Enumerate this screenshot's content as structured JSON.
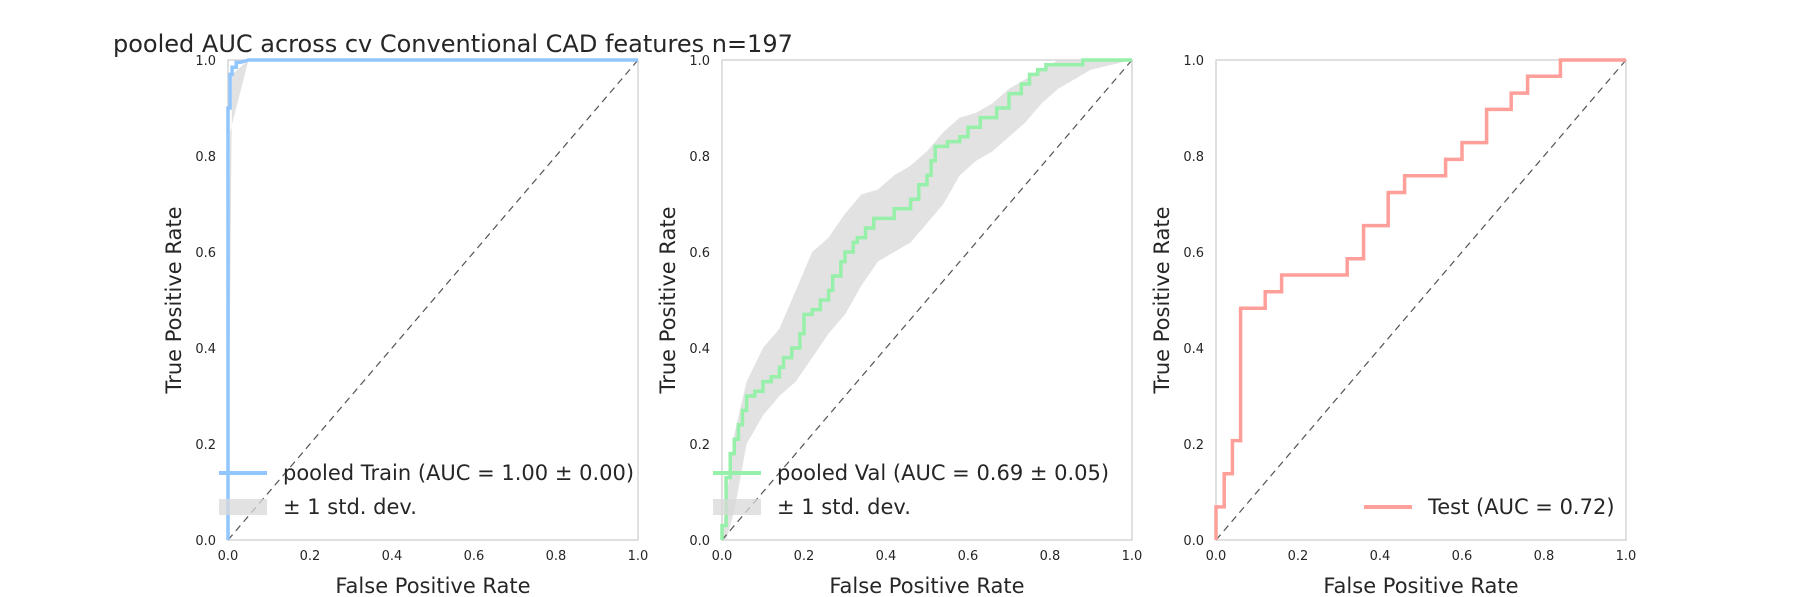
{
  "figure": {
    "title": "pooled AUC across cv Conventional CAD features n=197"
  },
  "chart_data": [
    {
      "type": "line",
      "xlabel": "False Positive Rate",
      "ylabel": "True Positive Rate",
      "xlim": [
        0,
        1
      ],
      "ylim": [
        0,
        1
      ],
      "xticks": [
        "0.0",
        "0.2",
        "0.4",
        "0.6",
        "0.8",
        "1.0"
      ],
      "yticks": [
        "0.0",
        "0.2",
        "0.4",
        "0.6",
        "0.8",
        "1.0"
      ],
      "grid": false,
      "legend_position": "lower-right",
      "diagonal": true,
      "series": [
        {
          "name": "pooled Train (AUC = 1.00 ± 0.00)",
          "color": "#92c6ff",
          "x": [
            0.0,
            0.0,
            0.005,
            0.005,
            0.01,
            0.01,
            0.02,
            0.02,
            0.03,
            0.05,
            1.0
          ],
          "y": [
            0.0,
            0.9,
            0.9,
            0.97,
            0.97,
            0.985,
            0.985,
            0.995,
            0.995,
            1.0,
            1.0
          ]
        }
      ],
      "band": {
        "name": "± 1 std. dev.",
        "color": "#d8d8d8",
        "upper": {
          "x": [
            0.0,
            0.01,
            0.05,
            1.0
          ],
          "y": [
            0.0,
            0.97,
            1.0,
            1.0
          ]
        },
        "lower": {
          "x": [
            0.0,
            0.005,
            0.05,
            1.0
          ],
          "y": [
            0.0,
            0.85,
            1.0,
            1.0
          ]
        }
      }
    },
    {
      "type": "line",
      "xlabel": "False Positive Rate",
      "ylabel": "True Positive Rate",
      "xlim": [
        0,
        1
      ],
      "ylim": [
        0,
        1
      ],
      "xticks": [
        "0.0",
        "0.2",
        "0.4",
        "0.6",
        "0.8",
        "1.0"
      ],
      "yticks": [
        "0.0",
        "0.2",
        "0.4",
        "0.6",
        "0.8",
        "1.0"
      ],
      "grid": false,
      "legend_position": "lower-right",
      "diagonal": true,
      "series": [
        {
          "name": "pooled Val (AUC = 0.69 ± 0.05)",
          "color": "#97f0aa",
          "x": [
            0.0,
            0.0,
            0.01,
            0.01,
            0.02,
            0.02,
            0.03,
            0.03,
            0.04,
            0.04,
            0.05,
            0.05,
            0.06,
            0.06,
            0.08,
            0.08,
            0.1,
            0.1,
            0.12,
            0.12,
            0.14,
            0.14,
            0.15,
            0.15,
            0.17,
            0.17,
            0.19,
            0.19,
            0.2,
            0.2,
            0.22,
            0.22,
            0.24,
            0.24,
            0.26,
            0.26,
            0.27,
            0.27,
            0.29,
            0.29,
            0.3,
            0.3,
            0.32,
            0.32,
            0.33,
            0.33,
            0.35,
            0.35,
            0.37,
            0.37,
            0.39,
            0.39,
            0.42,
            0.42,
            0.46,
            0.46,
            0.48,
            0.48,
            0.5,
            0.5,
            0.51,
            0.51,
            0.52,
            0.52,
            0.55,
            0.55,
            0.58,
            0.58,
            0.6,
            0.6,
            0.63,
            0.63,
            0.67,
            0.67,
            0.7,
            0.7,
            0.73,
            0.73,
            0.75,
            0.75,
            0.77,
            0.77,
            0.79,
            0.79,
            0.82,
            0.82,
            0.88,
            0.88,
            1.0
          ],
          "y": [
            0.0,
            0.03,
            0.03,
            0.13,
            0.13,
            0.18,
            0.18,
            0.21,
            0.21,
            0.24,
            0.24,
            0.27,
            0.27,
            0.3,
            0.3,
            0.31,
            0.31,
            0.33,
            0.33,
            0.34,
            0.34,
            0.36,
            0.36,
            0.38,
            0.38,
            0.4,
            0.4,
            0.43,
            0.43,
            0.47,
            0.47,
            0.48,
            0.48,
            0.5,
            0.5,
            0.52,
            0.52,
            0.55,
            0.55,
            0.58,
            0.58,
            0.6,
            0.6,
            0.62,
            0.62,
            0.63,
            0.63,
            0.65,
            0.65,
            0.67,
            0.67,
            0.67,
            0.67,
            0.69,
            0.69,
            0.71,
            0.71,
            0.74,
            0.74,
            0.76,
            0.76,
            0.79,
            0.79,
            0.82,
            0.82,
            0.83,
            0.83,
            0.84,
            0.84,
            0.86,
            0.86,
            0.88,
            0.88,
            0.9,
            0.9,
            0.93,
            0.93,
            0.95,
            0.95,
            0.97,
            0.97,
            0.98,
            0.98,
            0.99,
            0.99,
            0.99,
            0.99,
            1.0,
            1.0
          ]
        }
      ],
      "band": {
        "name": "± 1 std. dev.",
        "color": "#d8d8d8",
        "upper": {
          "x": [
            0.0,
            0.01,
            0.03,
            0.06,
            0.1,
            0.14,
            0.18,
            0.22,
            0.26,
            0.3,
            0.34,
            0.38,
            0.42,
            0.46,
            0.5,
            0.54,
            0.58,
            0.62,
            0.66,
            0.7,
            0.74,
            0.78,
            0.82,
            0.86,
            0.9,
            1.0
          ],
          "y": [
            0.0,
            0.08,
            0.22,
            0.33,
            0.4,
            0.44,
            0.52,
            0.6,
            0.63,
            0.68,
            0.72,
            0.73,
            0.76,
            0.78,
            0.81,
            0.85,
            0.88,
            0.89,
            0.91,
            0.94,
            0.96,
            0.98,
            1.0,
            1.0,
            1.0,
            1.0
          ]
        },
        "lower": {
          "x": [
            0.0,
            0.01,
            0.03,
            0.06,
            0.1,
            0.14,
            0.18,
            0.22,
            0.26,
            0.3,
            0.34,
            0.38,
            0.42,
            0.46,
            0.5,
            0.54,
            0.58,
            0.62,
            0.66,
            0.7,
            0.74,
            0.78,
            0.82,
            0.86,
            0.9,
            1.0
          ],
          "y": [
            0.0,
            0.0,
            0.06,
            0.2,
            0.26,
            0.3,
            0.33,
            0.38,
            0.43,
            0.47,
            0.53,
            0.58,
            0.6,
            0.62,
            0.66,
            0.7,
            0.76,
            0.79,
            0.81,
            0.84,
            0.87,
            0.91,
            0.94,
            0.96,
            0.98,
            1.0
          ]
        }
      }
    },
    {
      "type": "line",
      "xlabel": "False Positive Rate",
      "ylabel": "True Positive Rate",
      "xlim": [
        0,
        1
      ],
      "ylim": [
        0,
        1
      ],
      "xticks": [
        "0.0",
        "0.2",
        "0.4",
        "0.6",
        "0.8",
        "1.0"
      ],
      "yticks": [
        "0.0",
        "0.2",
        "0.4",
        "0.6",
        "0.8",
        "1.0"
      ],
      "grid": false,
      "legend_position": "lower-right",
      "diagonal": true,
      "series": [
        {
          "name": "Test (AUC = 0.72)",
          "color": "#ff9f9a",
          "x": [
            0.0,
            0.0,
            0.02,
            0.02,
            0.04,
            0.04,
            0.06,
            0.06,
            0.12,
            0.12,
            0.16,
            0.16,
            0.32,
            0.32,
            0.36,
            0.36,
            0.42,
            0.42,
            0.46,
            0.46,
            0.56,
            0.56,
            0.6,
            0.6,
            0.66,
            0.66,
            0.72,
            0.72,
            0.76,
            0.76,
            0.84,
            0.84,
            1.0
          ],
          "y": [
            0.0,
            0.069,
            0.069,
            0.138,
            0.138,
            0.207,
            0.207,
            0.483,
            0.483,
            0.517,
            0.517,
            0.552,
            0.552,
            0.586,
            0.586,
            0.655,
            0.655,
            0.724,
            0.724,
            0.759,
            0.759,
            0.793,
            0.793,
            0.828,
            0.828,
            0.897,
            0.897,
            0.931,
            0.931,
            0.966,
            0.966,
            1.0,
            1.0
          ]
        }
      ]
    }
  ]
}
